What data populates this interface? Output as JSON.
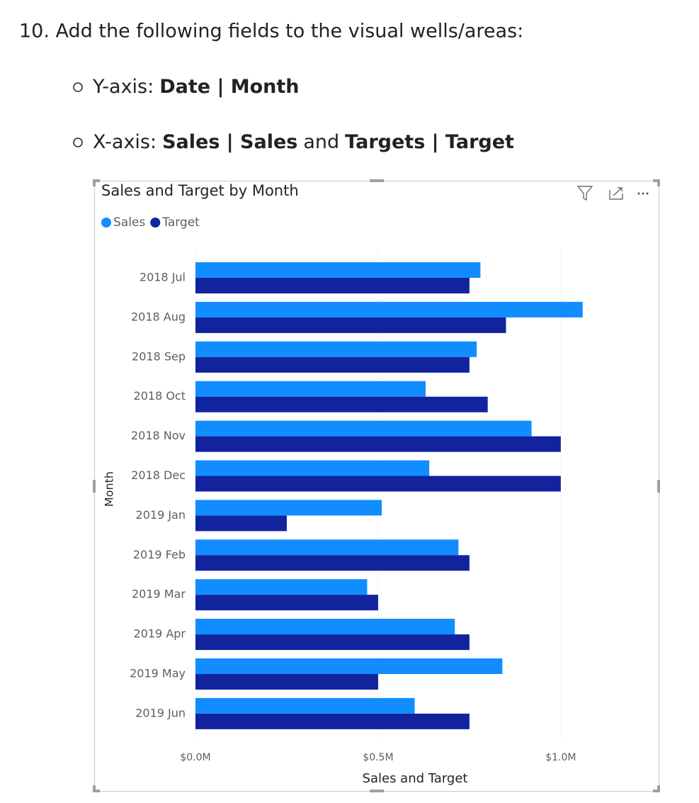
{
  "heading": "10. Add the following fields to the visual wells/areas:",
  "bullets": [
    {
      "segments": [
        {
          "text": "Y-axis:",
          "bold": false
        },
        {
          "text": "Date | Month",
          "bold": true
        }
      ]
    },
    {
      "segments": [
        {
          "text": "X-axis:",
          "bold": false
        },
        {
          "text": "Sales | Sales",
          "bold": true
        },
        {
          "text": "and",
          "bold": false
        },
        {
          "text": "Targets | Target",
          "bold": true
        }
      ]
    }
  ],
  "chart_data": {
    "type": "hbar",
    "title": "Sales and Target by Month",
    "categories": [
      "2018 Jul",
      "2018 Aug",
      "2018 Sep",
      "2018 Oct",
      "2018 Nov",
      "2018 Dec",
      "2019 Jan",
      "2019 Feb",
      "2019 Mar",
      "2019 Apr",
      "2019 May",
      "2019 Jun"
    ],
    "series": [
      {
        "name": "Sales",
        "color": "#118dff",
        "values": [
          0.78,
          1.06,
          0.77,
          0.63,
          0.92,
          0.64,
          0.51,
          0.72,
          0.47,
          0.71,
          0.84,
          0.6
        ]
      },
      {
        "name": "Target",
        "color": "#12239e",
        "values": [
          0.75,
          0.85,
          0.75,
          0.8,
          1.0,
          1.0,
          0.25,
          0.75,
          0.5,
          0.75,
          0.5,
          0.75
        ]
      }
    ],
    "xlim": [
      0,
      1.2
    ],
    "xticks": [
      {
        "value": 0,
        "label": "$0.0M"
      },
      {
        "value": 0.5,
        "label": "$0.5M"
      },
      {
        "value": 1.0,
        "label": "$1.0M"
      }
    ],
    "x_label": "Sales and Target",
    "y_label": "Month",
    "grid": true,
    "legend": "top-left"
  }
}
